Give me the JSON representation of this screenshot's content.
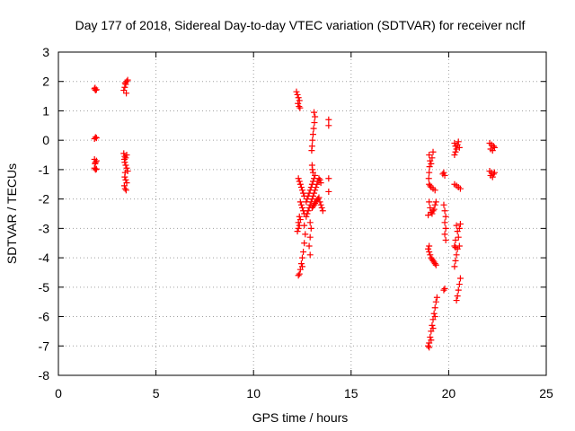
{
  "chart_data": {
    "type": "scatter",
    "title": "Day 177 of 2018, Sidereal Day-to-day VTEC variation (SDTVAR) for receiver nclf",
    "xlabel": "GPS time / hours",
    "ylabel": "SDTVAR / TECUs",
    "xlim": [
      0,
      25
    ],
    "ylim": [
      -8,
      3
    ],
    "xticks": [
      0,
      5,
      10,
      15,
      20,
      25
    ],
    "yticks": [
      -8,
      -7,
      -6,
      -5,
      -4,
      -3,
      -2,
      -1,
      0,
      1,
      2,
      3
    ],
    "grid": true,
    "marker": "+",
    "marker_color": "#ff0000",
    "series": [
      {
        "name": "SDTVAR",
        "points": [
          [
            1.85,
            1.75
          ],
          [
            1.9,
            1.7
          ],
          [
            1.95,
            1.72
          ],
          [
            1.88,
            1.78
          ],
          [
            1.9,
            0.1
          ],
          [
            1.95,
            0.08
          ],
          [
            1.85,
            0.05
          ],
          [
            1.85,
            -0.65
          ],
          [
            1.9,
            -0.75
          ],
          [
            1.95,
            -0.7
          ],
          [
            1.88,
            -0.8
          ],
          [
            1.85,
            -0.95
          ],
          [
            1.9,
            -1.0
          ],
          [
            1.95,
            -0.98
          ],
          [
            3.35,
            1.7
          ],
          [
            3.4,
            1.8
          ],
          [
            3.45,
            1.9
          ],
          [
            3.5,
            2.0
          ],
          [
            3.55,
            2.05
          ],
          [
            3.42,
            1.95
          ],
          [
            3.48,
            1.6
          ],
          [
            3.35,
            -0.45
          ],
          [
            3.4,
            -0.55
          ],
          [
            3.45,
            -0.6
          ],
          [
            3.5,
            -0.5
          ],
          [
            3.38,
            -0.65
          ],
          [
            3.4,
            -0.75
          ],
          [
            3.45,
            -0.85
          ],
          [
            3.5,
            -0.95
          ],
          [
            3.55,
            -1.05
          ],
          [
            3.42,
            -1.1
          ],
          [
            3.4,
            -1.25
          ],
          [
            3.45,
            -1.35
          ],
          [
            3.5,
            -1.45
          ],
          [
            3.38,
            -1.55
          ],
          [
            3.42,
            -1.65
          ],
          [
            3.47,
            -1.7
          ],
          [
            12.2,
            1.65
          ],
          [
            12.25,
            1.55
          ],
          [
            12.3,
            1.45
          ],
          [
            12.35,
            1.35
          ],
          [
            12.28,
            1.25
          ],
          [
            12.33,
            1.15
          ],
          [
            12.38,
            1.1
          ],
          [
            12.3,
            -1.3
          ],
          [
            12.35,
            -1.4
          ],
          [
            12.4,
            -1.5
          ],
          [
            12.45,
            -1.6
          ],
          [
            12.5,
            -1.7
          ],
          [
            12.55,
            -1.8
          ],
          [
            12.6,
            -1.9
          ],
          [
            12.4,
            -2.1
          ],
          [
            12.45,
            -2.2
          ],
          [
            12.5,
            -2.3
          ],
          [
            12.55,
            -2.4
          ],
          [
            12.6,
            -2.5
          ],
          [
            12.35,
            -2.6
          ],
          [
            12.4,
            -2.7
          ],
          [
            12.3,
            -2.8
          ],
          [
            12.35,
            -2.9
          ],
          [
            12.3,
            -3.0
          ],
          [
            12.25,
            -3.1
          ],
          [
            12.7,
            -2.1
          ],
          [
            12.75,
            -2.0
          ],
          [
            12.8,
            -1.9
          ],
          [
            12.85,
            -1.8
          ],
          [
            12.9,
            -1.7
          ],
          [
            12.95,
            -1.6
          ],
          [
            13.0,
            -1.5
          ],
          [
            13.05,
            -1.4
          ],
          [
            13.1,
            -1.3
          ],
          [
            13.15,
            -1.2
          ],
          [
            12.7,
            -2.6
          ],
          [
            12.75,
            -2.5
          ],
          [
            12.8,
            -2.4
          ],
          [
            12.85,
            -2.3
          ],
          [
            12.9,
            -2.2
          ],
          [
            12.95,
            -2.1
          ],
          [
            13.0,
            -2.0
          ],
          [
            13.05,
            -1.9
          ],
          [
            13.1,
            -1.8
          ],
          [
            13.15,
            -1.7
          ],
          [
            13.2,
            -1.6
          ],
          [
            13.25,
            -1.5
          ],
          [
            13.3,
            -1.4
          ],
          [
            13.35,
            -1.3
          ],
          [
            13.4,
            -1.35
          ],
          [
            13.45,
            -1.45
          ],
          [
            13.0,
            -2.3
          ],
          [
            13.05,
            -2.25
          ],
          [
            13.1,
            -2.2
          ],
          [
            13.15,
            -2.15
          ],
          [
            13.2,
            -2.1
          ],
          [
            13.25,
            -2.05
          ],
          [
            13.3,
            -2.0
          ],
          [
            13.35,
            -1.95
          ],
          [
            13.4,
            -2.1
          ],
          [
            13.45,
            -2.2
          ],
          [
            13.5,
            -2.3
          ],
          [
            13.55,
            -2.4
          ],
          [
            12.6,
            -2.9
          ],
          [
            12.65,
            -3.2
          ],
          [
            12.6,
            -3.5
          ],
          [
            12.55,
            -3.8
          ],
          [
            12.5,
            -4.0
          ],
          [
            12.45,
            -4.2
          ],
          [
            12.4,
            -4.4
          ],
          [
            12.35,
            -4.55
          ],
          [
            12.3,
            -4.6
          ],
          [
            12.5,
            -4.3
          ],
          [
            12.9,
            -2.8
          ],
          [
            12.95,
            -3.0
          ],
          [
            12.9,
            -3.3
          ],
          [
            12.85,
            -3.6
          ],
          [
            12.9,
            -3.9
          ],
          [
            13.1,
            0.95
          ],
          [
            13.15,
            0.8
          ],
          [
            13.12,
            0.6
          ],
          [
            13.08,
            0.4
          ],
          [
            13.05,
            0.2
          ],
          [
            13.02,
            0.0
          ],
          [
            13.0,
            -0.2
          ],
          [
            12.98,
            -0.35
          ],
          [
            13.0,
            -0.85
          ],
          [
            13.02,
            -1.0
          ],
          [
            13.05,
            -1.1
          ],
          [
            13.85,
            0.7
          ],
          [
            13.85,
            0.5
          ],
          [
            13.85,
            -1.3
          ],
          [
            13.85,
            -1.75
          ],
          [
            19.0,
            -0.5
          ],
          [
            19.05,
            -0.7
          ],
          [
            19.02,
            -0.9
          ],
          [
            19.0,
            -1.1
          ],
          [
            18.98,
            -1.3
          ],
          [
            19.0,
            -1.5
          ],
          [
            19.1,
            -1.6
          ],
          [
            19.2,
            -1.65
          ],
          [
            19.3,
            -1.7
          ],
          [
            19.05,
            -1.55
          ],
          [
            19.2,
            -0.4
          ],
          [
            19.15,
            -0.6
          ],
          [
            19.1,
            -0.8
          ],
          [
            19.0,
            -2.1
          ],
          [
            19.05,
            -2.3
          ],
          [
            19.1,
            -2.45
          ],
          [
            19.15,
            -2.5
          ],
          [
            19.3,
            -2.2
          ],
          [
            19.25,
            -2.35
          ],
          [
            19.2,
            -2.4
          ],
          [
            18.95,
            -2.55
          ],
          [
            19.35,
            -2.1
          ],
          [
            18.95,
            -3.7
          ],
          [
            19.0,
            -3.8
          ],
          [
            19.05,
            -3.9
          ],
          [
            19.1,
            -4.0
          ],
          [
            19.15,
            -4.05
          ],
          [
            19.2,
            -4.1
          ],
          [
            19.25,
            -4.15
          ],
          [
            19.3,
            -4.2
          ],
          [
            19.35,
            -4.25
          ],
          [
            19.0,
            -3.6
          ],
          [
            18.95,
            -7.0
          ],
          [
            19.0,
            -6.9
          ],
          [
            19.05,
            -6.7
          ],
          [
            19.1,
            -6.5
          ],
          [
            19.15,
            -6.3
          ],
          [
            19.2,
            -6.1
          ],
          [
            19.25,
            -5.9
          ],
          [
            19.3,
            -5.7
          ],
          [
            19.35,
            -5.5
          ],
          [
            19.4,
            -5.35
          ],
          [
            19.0,
            -7.05
          ],
          [
            19.1,
            -6.8
          ],
          [
            19.2,
            -6.4
          ],
          [
            19.3,
            -6.0
          ],
          [
            19.75,
            -1.1
          ],
          [
            19.8,
            -1.2
          ],
          [
            19.7,
            -1.15
          ],
          [
            19.75,
            -2.2
          ],
          [
            19.8,
            -2.4
          ],
          [
            19.85,
            -2.6
          ],
          [
            19.8,
            -2.8
          ],
          [
            19.85,
            -3.0
          ],
          [
            19.8,
            -3.2
          ],
          [
            19.85,
            -3.4
          ],
          [
            19.8,
            -5.05
          ],
          [
            19.75,
            -5.1
          ],
          [
            20.3,
            -0.1
          ],
          [
            20.35,
            -0.2
          ],
          [
            20.4,
            -0.3
          ],
          [
            20.45,
            -0.15
          ],
          [
            20.5,
            -0.05
          ],
          [
            20.55,
            -0.25
          ],
          [
            20.35,
            -0.4
          ],
          [
            20.3,
            -0.5
          ],
          [
            20.3,
            -1.5
          ],
          [
            20.4,
            -1.55
          ],
          [
            20.5,
            -1.6
          ],
          [
            20.6,
            -1.65
          ],
          [
            20.4,
            -2.9
          ],
          [
            20.45,
            -3.1
          ],
          [
            20.5,
            -3.3
          ],
          [
            20.55,
            -3.0
          ],
          [
            20.6,
            -2.85
          ],
          [
            20.35,
            -3.4
          ],
          [
            20.3,
            -3.6
          ],
          [
            20.35,
            -3.65
          ],
          [
            20.45,
            -3.7
          ],
          [
            20.55,
            -3.6
          ],
          [
            20.4,
            -3.9
          ],
          [
            20.35,
            -4.1
          ],
          [
            20.3,
            -4.3
          ],
          [
            20.6,
            -4.7
          ],
          [
            20.55,
            -4.9
          ],
          [
            20.5,
            -5.1
          ],
          [
            20.45,
            -5.3
          ],
          [
            20.4,
            -5.45
          ],
          [
            22.1,
            -0.1
          ],
          [
            22.2,
            -0.15
          ],
          [
            22.3,
            -0.2
          ],
          [
            22.15,
            -0.3
          ],
          [
            22.25,
            -0.35
          ],
          [
            22.35,
            -0.25
          ],
          [
            22.1,
            -1.05
          ],
          [
            22.2,
            -1.1
          ],
          [
            22.3,
            -1.15
          ],
          [
            22.15,
            -1.2
          ],
          [
            22.25,
            -1.25
          ],
          [
            22.35,
            -1.1
          ]
        ]
      }
    ]
  }
}
